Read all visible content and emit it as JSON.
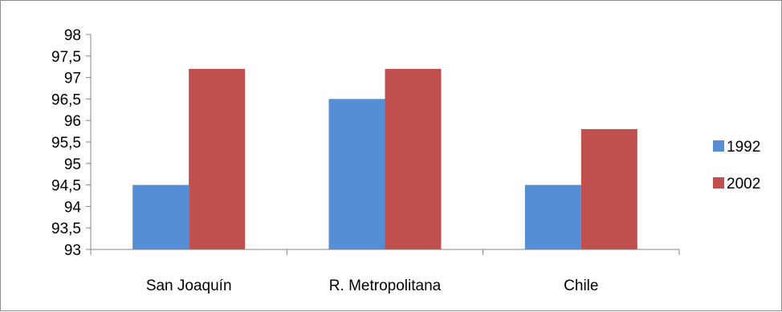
{
  "chart_data": {
    "type": "bar",
    "categories": [
      "San Joaquín",
      "R. Metropolitana",
      "Chile"
    ],
    "series": [
      {
        "name": "1992",
        "values": [
          94.5,
          96.5,
          94.5
        ],
        "color": "#558ed5"
      },
      {
        "name": "2002",
        "values": [
          97.2,
          97.2,
          95.8
        ],
        "color": "#c0504d"
      }
    ],
    "ylim": [
      93,
      98
    ],
    "yticks": [
      "93",
      "93,5",
      "94",
      "94,5",
      "95",
      "95,5",
      "96",
      "96,5",
      "97",
      "97,5",
      "98"
    ],
    "grid": false,
    "legend_position": "right",
    "axis_color": "#868686"
  }
}
